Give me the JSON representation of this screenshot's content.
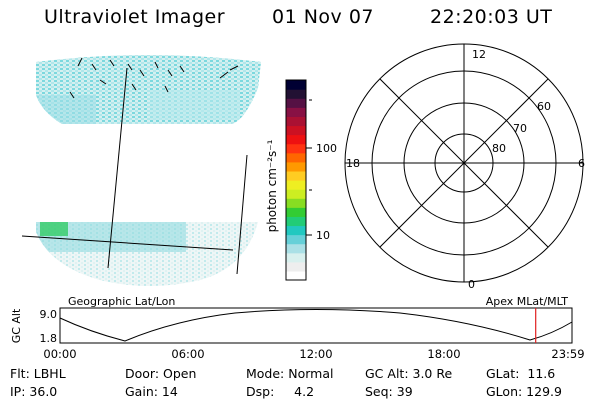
{
  "header": {
    "app_title": "Ultraviolet Imager",
    "date": "01 Nov 07",
    "time": "22:20:03 UT"
  },
  "colorbar": {
    "unit": "photon cm⁻²s⁻¹",
    "ticks": [
      "100",
      "10"
    ],
    "colors": [
      "#ffffff",
      "#eeeeee",
      "#d8f0ee",
      "#aae0e6",
      "#66d0d8",
      "#22c8c0",
      "#22cc77",
      "#33cc33",
      "#88dd22",
      "#ccee22",
      "#eeee22",
      "#ffcc22",
      "#ff9900",
      "#ff6600",
      "#ff3311",
      "#ee1111",
      "#cc1122",
      "#aa1133",
      "#881144",
      "#551144",
      "#221133",
      "#000033"
    ]
  },
  "polar": {
    "mlt_labels": [
      "12",
      "18",
      "6",
      "0"
    ],
    "lat_labels": [
      "60",
      "70",
      "80"
    ]
  },
  "orbit": {
    "left_label": "Geographic Lat/Lon",
    "right_label": "Apex MLat/MLT",
    "y_axis_title": "GC Alt",
    "y_ticks": [
      "9.0",
      "1.8"
    ],
    "x_ticks": [
      "00:00",
      "06:00",
      "12:00",
      "18:00",
      "23:59"
    ],
    "marker_hour": 22.3,
    "marker_color": "#e02020"
  },
  "status": {
    "flt": "Flt: LBHL",
    "ip": "IP: 36.0",
    "door": "Door: Open",
    "gain": "Gain: 14",
    "mode": "Mode: Normal",
    "dsp": "Dsp:     4.2",
    "gcalt": "GC Alt: 3.0 Re",
    "seq": "Seq: 39",
    "glat": "GLat:  11.6",
    "glon": "GLon: 129.9"
  }
}
